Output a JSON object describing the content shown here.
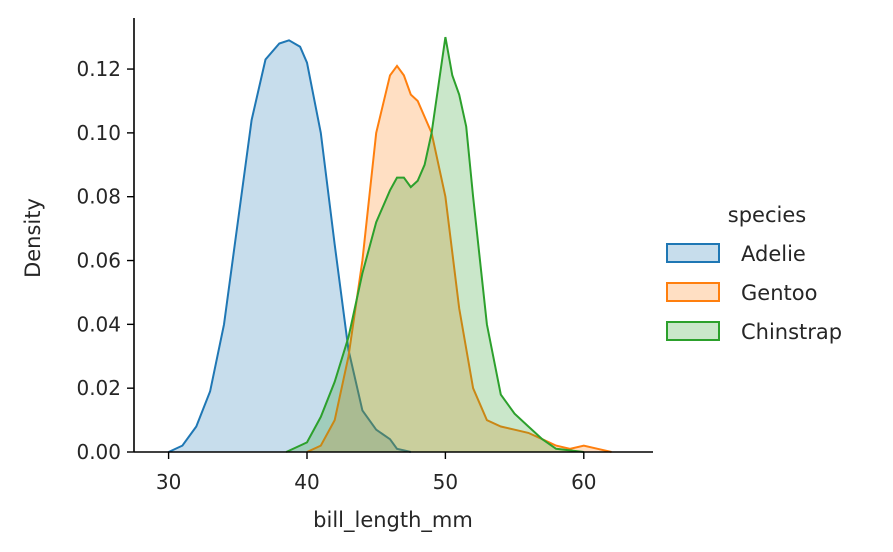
{
  "chart_data": {
    "type": "area",
    "xlabel": "bill_length_mm",
    "ylabel": "Density",
    "xlim": [
      27.5,
      65
    ],
    "ylim": [
      0,
      0.136
    ],
    "xticks": [
      30,
      40,
      50,
      60
    ],
    "yticks": [
      0.0,
      0.02,
      0.04,
      0.06,
      0.08,
      0.1,
      0.12
    ],
    "ytick_labels": [
      "0.00",
      "0.02",
      "0.04",
      "0.06",
      "0.08",
      "0.10",
      "0.12"
    ],
    "xtick_labels": [
      "30",
      "40",
      "50",
      "60"
    ],
    "legend": {
      "title": "species",
      "placement": "center-right"
    },
    "series": [
      {
        "name": "Adelie",
        "color": "#1f77b4",
        "x": [
          30.0,
          31.0,
          32.0,
          33.0,
          34.0,
          35.0,
          36.0,
          37.0,
          38.0,
          38.7,
          39.5,
          40.0,
          41.0,
          42.0,
          43.0,
          44.0,
          45.0,
          46.0,
          46.5,
          47.0,
          47.5
        ],
        "y": [
          0.0,
          0.002,
          0.008,
          0.019,
          0.04,
          0.072,
          0.104,
          0.123,
          0.128,
          0.129,
          0.127,
          0.122,
          0.1,
          0.065,
          0.032,
          0.013,
          0.007,
          0.004,
          0.001,
          0.0005,
          0.0
        ]
      },
      {
        "name": "Gentoo",
        "color": "#ff7f0e",
        "x": [
          40.0,
          41.0,
          42.0,
          43.0,
          44.0,
          45.0,
          46.0,
          46.5,
          47.0,
          47.5,
          48.0,
          49.0,
          50.0,
          51.0,
          52.0,
          53.0,
          54.0,
          55.0,
          56.0,
          57.0,
          58.0,
          59.0,
          60.0,
          61.0,
          62.0
        ],
        "y": [
          0.0,
          0.002,
          0.01,
          0.03,
          0.06,
          0.1,
          0.118,
          0.121,
          0.118,
          0.112,
          0.11,
          0.1,
          0.08,
          0.045,
          0.02,
          0.01,
          0.008,
          0.007,
          0.006,
          0.004,
          0.002,
          0.001,
          0.002,
          0.001,
          0.0
        ]
      },
      {
        "name": "Chinstrap",
        "color": "#2ca02c",
        "x": [
          38.5,
          40.0,
          41.0,
          42.0,
          43.0,
          44.0,
          45.0,
          46.0,
          46.5,
          47.0,
          47.5,
          48.0,
          48.5,
          49.0,
          49.5,
          50.0,
          50.5,
          51.0,
          51.5,
          52.0,
          53.0,
          54.0,
          55.0,
          56.0,
          57.0,
          58.0,
          59.0,
          60.0
        ],
        "y": [
          0.0,
          0.003,
          0.011,
          0.022,
          0.036,
          0.056,
          0.072,
          0.082,
          0.086,
          0.086,
          0.083,
          0.085,
          0.09,
          0.1,
          0.115,
          0.13,
          0.118,
          0.112,
          0.102,
          0.08,
          0.04,
          0.018,
          0.012,
          0.008,
          0.004,
          0.001,
          0.0005,
          0.0
        ]
      }
    ]
  }
}
